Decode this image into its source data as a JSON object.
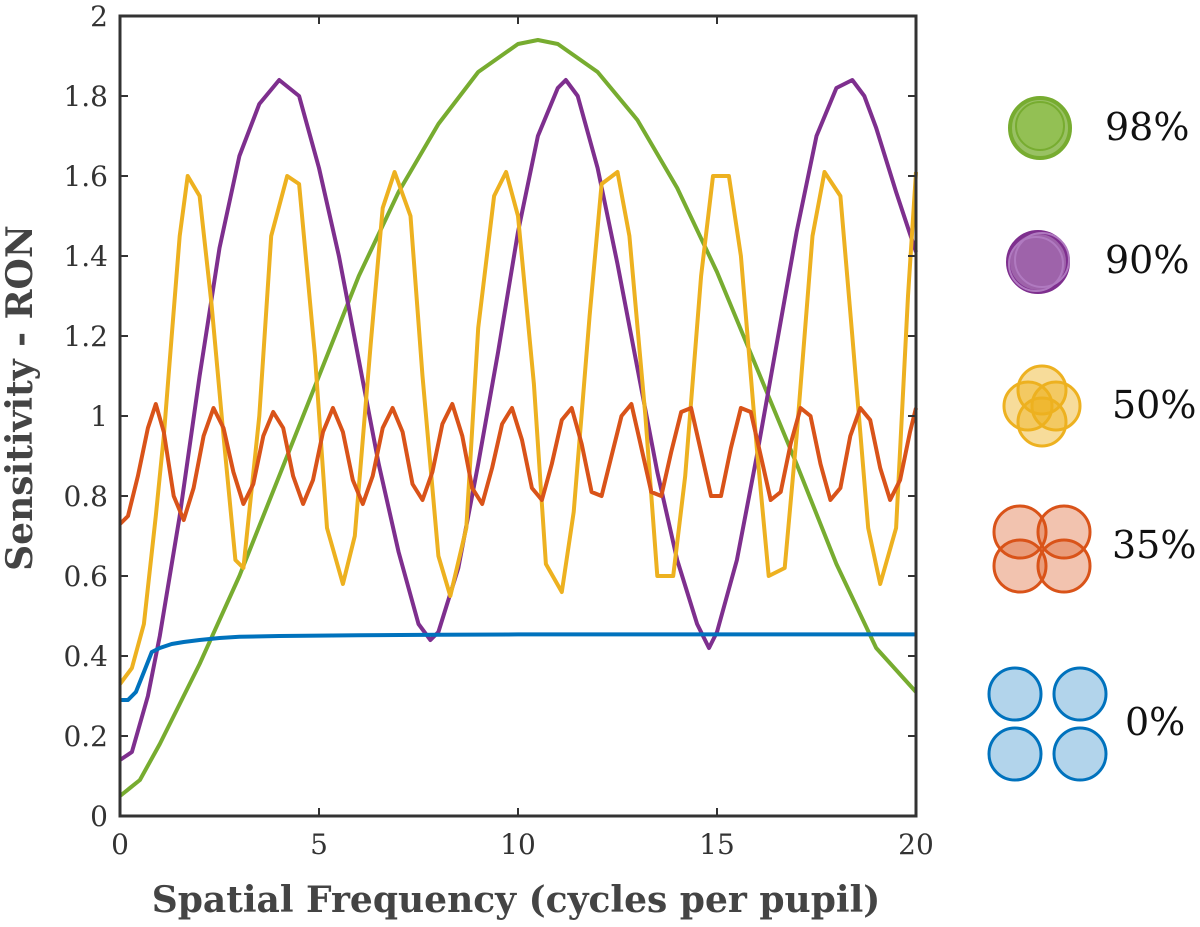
{
  "chart_data": {
    "type": "line",
    "xlabel": "Spatial Frequency (cycles per pupil)",
    "ylabel": "Sensitivity - RON",
    "xlim": [
      0,
      20
    ],
    "ylim": [
      0,
      2
    ],
    "xticks": [
      0,
      5,
      10,
      15,
      20
    ],
    "yticks": [
      0,
      0.2,
      0.4,
      0.6,
      0.8,
      1,
      1.2,
      1.4,
      1.6,
      1.8,
      2
    ],
    "ytick_labels": [
      "0",
      "0.2",
      "0.4",
      "0.6",
      "0.8",
      "1",
      "1.2",
      "1.4",
      "1.6",
      "1.8",
      "2"
    ],
    "legend_position": "right",
    "series": [
      {
        "name": "98%",
        "color": "#77ac30",
        "icon": "single-circle",
        "x": [
          0,
          0.5,
          1,
          1.5,
          2,
          3,
          4,
          5,
          6,
          7,
          8,
          9,
          10,
          10.5,
          11,
          12,
          13,
          14,
          15,
          16,
          17,
          18,
          19,
          20
        ],
        "y": [
          0.05,
          0.09,
          0.18,
          0.28,
          0.38,
          0.6,
          0.85,
          1.1,
          1.35,
          1.56,
          1.73,
          1.86,
          1.93,
          1.94,
          1.93,
          1.86,
          1.74,
          1.57,
          1.36,
          1.12,
          0.88,
          0.63,
          0.42,
          0.31
        ]
      },
      {
        "name": "90%",
        "color": "#7e2f8e",
        "icon": "overlapping-circles",
        "x": [
          0,
          0.3,
          0.7,
          1,
          1.5,
          2,
          2.5,
          3,
          3.5,
          4,
          4.5,
          5,
          5.5,
          6,
          6.5,
          7,
          7.5,
          7.8,
          8,
          8.5,
          9,
          9.5,
          10,
          10.5,
          11,
          11.2,
          11.5,
          12,
          12.5,
          13,
          13.5,
          14,
          14.5,
          14.8,
          15,
          15.5,
          16,
          16.5,
          17,
          17.5,
          18,
          18.4,
          18.7,
          19,
          19.5,
          20
        ],
        "y": [
          0.14,
          0.16,
          0.3,
          0.45,
          0.75,
          1.1,
          1.42,
          1.65,
          1.78,
          1.84,
          1.8,
          1.62,
          1.4,
          1.14,
          0.88,
          0.66,
          0.48,
          0.44,
          0.46,
          0.62,
          0.88,
          1.16,
          1.46,
          1.7,
          1.82,
          1.84,
          1.8,
          1.62,
          1.38,
          1.12,
          0.86,
          0.64,
          0.48,
          0.42,
          0.46,
          0.64,
          0.9,
          1.18,
          1.46,
          1.7,
          1.82,
          1.84,
          1.8,
          1.72,
          1.56,
          1.41
        ]
      },
      {
        "name": "50%",
        "color": "#edb120",
        "icon": "circle-cluster",
        "x": [
          0,
          0.3,
          0.6,
          0.9,
          1.1,
          1.3,
          1.5,
          1.7,
          2,
          2.3,
          2.6,
          2.9,
          3.1,
          3.5,
          3.8,
          4.2,
          4.5,
          4.9,
          5.2,
          5.6,
          5.9,
          6.3,
          6.6,
          6.9,
          7.3,
          7.6,
          8,
          8.3,
          8.7,
          9,
          9.4,
          9.7,
          10,
          10.4,
          10.7,
          11.1,
          11.4,
          11.8,
          12.1,
          12.5,
          12.8,
          13.2,
          13.5,
          13.9,
          14.2,
          14.6,
          14.9,
          15.3,
          15.6,
          16,
          16.3,
          16.7,
          17,
          17.4,
          17.7,
          18.1,
          18.4,
          18.8,
          19.1,
          19.5,
          19.8,
          20
        ],
        "y": [
          0.33,
          0.37,
          0.48,
          0.75,
          0.95,
          1.2,
          1.45,
          1.6,
          1.55,
          1.28,
          0.95,
          0.64,
          0.62,
          1.0,
          1.45,
          1.6,
          1.58,
          1.15,
          0.72,
          0.58,
          0.7,
          1.18,
          1.52,
          1.61,
          1.5,
          1.1,
          0.65,
          0.55,
          0.72,
          1.22,
          1.55,
          1.61,
          1.5,
          1.08,
          0.63,
          0.56,
          0.76,
          1.25,
          1.58,
          1.61,
          1.45,
          1.0,
          0.6,
          0.6,
          0.85,
          1.35,
          1.6,
          1.6,
          1.4,
          0.92,
          0.6,
          0.62,
          0.95,
          1.45,
          1.61,
          1.55,
          1.2,
          0.72,
          0.58,
          0.72,
          1.3,
          1.61
        ]
      },
      {
        "name": "35%",
        "color": "#d95319",
        "icon": "four-overlapping-circles",
        "x": [
          0,
          0.2,
          0.45,
          0.7,
          0.9,
          1.1,
          1.35,
          1.6,
          1.85,
          2.1,
          2.35,
          2.6,
          2.85,
          3.1,
          3.35,
          3.6,
          3.85,
          4.1,
          4.35,
          4.6,
          4.85,
          5.1,
          5.35,
          5.6,
          5.85,
          6.1,
          6.35,
          6.6,
          6.85,
          7.1,
          7.35,
          7.6,
          7.85,
          8.1,
          8.35,
          8.6,
          8.85,
          9.1,
          9.35,
          9.6,
          9.85,
          10.1,
          10.35,
          10.6,
          10.85,
          11.1,
          11.35,
          11.6,
          11.85,
          12.1,
          12.35,
          12.6,
          12.85,
          13.1,
          13.35,
          13.6,
          13.85,
          14.1,
          14.35,
          14.6,
          14.85,
          15.1,
          15.35,
          15.6,
          15.85,
          16.1,
          16.35,
          16.6,
          16.85,
          17.1,
          17.35,
          17.6,
          17.85,
          18.1,
          18.35,
          18.6,
          18.85,
          19.1,
          19.35,
          19.6,
          19.85,
          20
        ],
        "y": [
          0.73,
          0.75,
          0.85,
          0.97,
          1.03,
          0.96,
          0.8,
          0.74,
          0.82,
          0.95,
          1.02,
          0.97,
          0.86,
          0.78,
          0.83,
          0.95,
          1.01,
          0.97,
          0.85,
          0.78,
          0.84,
          0.96,
          1.02,
          0.96,
          0.84,
          0.78,
          0.85,
          0.97,
          1.02,
          0.96,
          0.83,
          0.79,
          0.86,
          0.98,
          1.03,
          0.95,
          0.82,
          0.78,
          0.87,
          0.98,
          1.02,
          0.94,
          0.82,
          0.79,
          0.88,
          0.99,
          1.02,
          0.93,
          0.81,
          0.8,
          0.9,
          1.0,
          1.03,
          0.92,
          0.81,
          0.8,
          0.91,
          1.01,
          1.02,
          0.91,
          0.8,
          0.8,
          0.92,
          1.02,
          1.01,
          0.9,
          0.79,
          0.81,
          0.93,
          1.02,
          1.0,
          0.88,
          0.79,
          0.82,
          0.95,
          1.02,
          0.99,
          0.87,
          0.79,
          0.84,
          0.96,
          1.02
        ]
      },
      {
        "name": "0%",
        "color": "#0072bd",
        "icon": "four-separate-circles",
        "x": [
          0,
          0.2,
          0.4,
          0.6,
          0.8,
          1.0,
          1.3,
          1.6,
          2,
          2.5,
          3,
          4,
          5,
          6,
          8,
          10,
          12,
          14,
          16,
          18,
          20
        ],
        "y": [
          0.29,
          0.29,
          0.31,
          0.36,
          0.41,
          0.42,
          0.43,
          0.435,
          0.44,
          0.445,
          0.448,
          0.45,
          0.451,
          0.452,
          0.453,
          0.454,
          0.454,
          0.454,
          0.454,
          0.454,
          0.454
        ]
      }
    ]
  }
}
